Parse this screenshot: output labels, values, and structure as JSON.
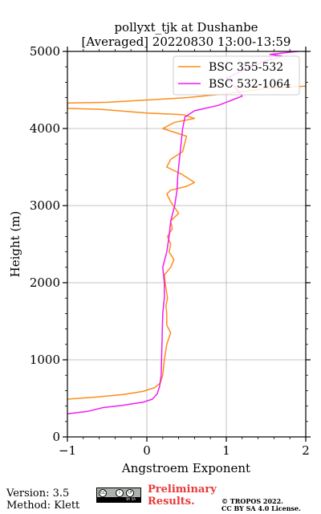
{
  "chart_data": {
    "type": "line",
    "title": "pollyxt_tjk at Dushanbe",
    "subtitle": "[Averaged] 20220830 13:00-13:59",
    "xlabel": "Angstroem Exponent",
    "ylabel": "Height (m)",
    "xlim": [
      -1,
      2
    ],
    "ylim": [
      0,
      5000
    ],
    "xticks": [
      "−1",
      "0",
      "1",
      "2"
    ],
    "yticks": [
      "0",
      "1000",
      "2000",
      "3000",
      "4000",
      "5000"
    ],
    "grid": true,
    "legend_position": "top-right",
    "series": [
      {
        "name": "BSC 355-532",
        "color": "#ff8c1a",
        "points": [
          [
            -1.0,
            490
          ],
          [
            -0.6,
            520
          ],
          [
            -0.3,
            550
          ],
          [
            -0.05,
            590
          ],
          [
            0.1,
            640
          ],
          [
            0.17,
            700
          ],
          [
            0.2,
            800
          ],
          [
            0.22,
            1000
          ],
          [
            0.25,
            1200
          ],
          [
            0.3,
            1350
          ],
          [
            0.25,
            1450
          ],
          [
            0.25,
            1600
          ],
          [
            0.24,
            1700
          ],
          [
            0.26,
            1800
          ],
          [
            0.23,
            2000
          ],
          [
            0.22,
            2100
          ],
          [
            0.3,
            2200
          ],
          [
            0.34,
            2300
          ],
          [
            0.28,
            2400
          ],
          [
            0.3,
            2500
          ],
          [
            0.26,
            2600
          ],
          [
            0.32,
            2700
          ],
          [
            0.3,
            2800
          ],
          [
            0.4,
            2900
          ],
          [
            0.3,
            3050
          ],
          [
            0.25,
            3150
          ],
          [
            0.3,
            3200
          ],
          [
            0.5,
            3250
          ],
          [
            0.6,
            3300
          ],
          [
            0.45,
            3400
          ],
          [
            0.25,
            3500
          ],
          [
            0.3,
            3600
          ],
          [
            0.45,
            3700
          ],
          [
            0.5,
            3900
          ],
          [
            0.2,
            4000
          ],
          [
            0.35,
            4080
          ],
          [
            0.6,
            4130
          ],
          [
            0.45,
            4180
          ],
          [
            0.0,
            4200
          ],
          [
            -0.6,
            4250
          ],
          [
            -1.0,
            4260
          ],
          [
            -1.0,
            4330
          ],
          [
            -0.5,
            4340
          ],
          [
            0.0,
            4370
          ],
          [
            0.5,
            4400
          ],
          [
            1.0,
            4450
          ],
          [
            1.5,
            4520
          ],
          [
            2.0,
            4550
          ]
        ]
      },
      {
        "name": "BSC 532-1064",
        "color": "#f01cf0",
        "points": [
          [
            -1.0,
            300
          ],
          [
            -0.75,
            330
          ],
          [
            -0.55,
            380
          ],
          [
            -0.3,
            410
          ],
          [
            -0.05,
            450
          ],
          [
            0.07,
            490
          ],
          [
            0.13,
            560
          ],
          [
            0.16,
            650
          ],
          [
            0.18,
            800
          ],
          [
            0.19,
            1200
          ],
          [
            0.2,
            1600
          ],
          [
            0.22,
            1800
          ],
          [
            0.22,
            2000
          ],
          [
            0.2,
            2200
          ],
          [
            0.25,
            2400
          ],
          [
            0.28,
            2600
          ],
          [
            0.3,
            2800
          ],
          [
            0.35,
            3000
          ],
          [
            0.38,
            3200
          ],
          [
            0.39,
            3400
          ],
          [
            0.41,
            3600
          ],
          [
            0.43,
            3800
          ],
          [
            0.45,
            4000
          ],
          [
            0.48,
            4150
          ],
          [
            0.6,
            4230
          ],
          [
            0.9,
            4300
          ],
          [
            1.1,
            4380
          ],
          [
            1.2,
            4420
          ],
          [
            1.1,
            4550
          ],
          [
            1.0,
            4650
          ],
          [
            1.2,
            4750
          ],
          [
            1.5,
            4880
          ],
          [
            1.6,
            4900
          ],
          [
            1.7,
            4940
          ],
          [
            1.55,
            4960
          ],
          [
            1.8,
            4990
          ],
          [
            2.0,
            5010
          ]
        ]
      }
    ]
  },
  "footer": {
    "version": "Version: 3.5",
    "method": "Method: Klett",
    "preliminary_line1": "Preliminary",
    "preliminary_line2": "Results.",
    "copyright_line1": "© TROPOS 2022.",
    "copyright_line2": "CC BY SA 4.0 License.",
    "license_badge_text": "BY SA"
  }
}
